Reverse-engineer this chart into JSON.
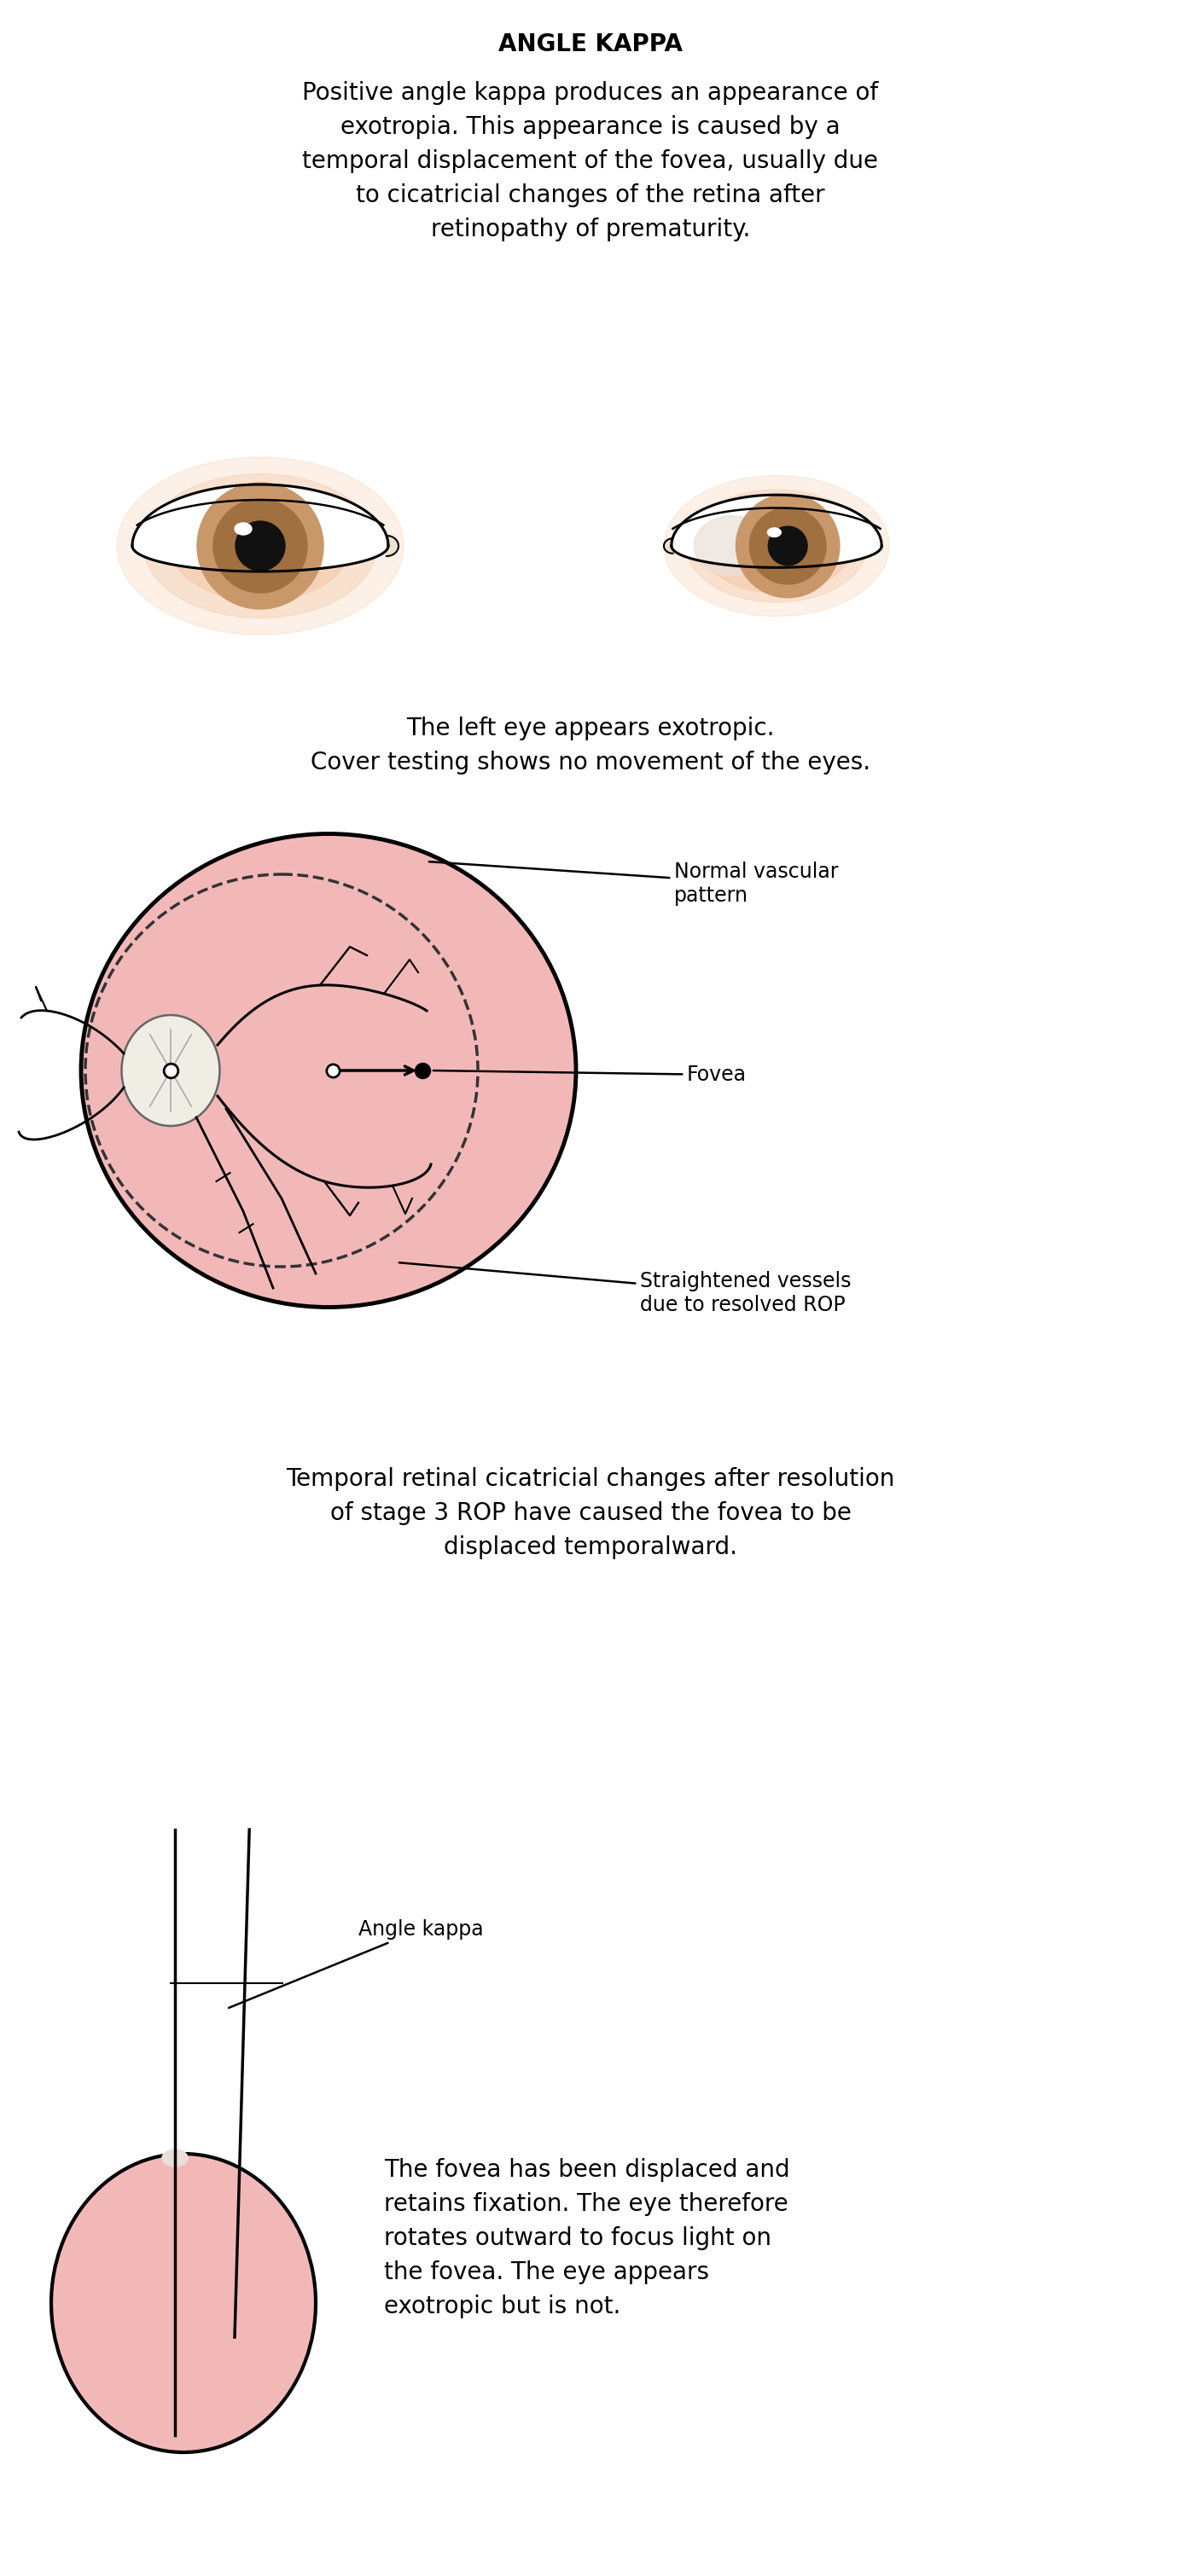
{
  "title": "ANGLE KAPPA",
  "title_fontsize": 20,
  "text1": "Positive angle kappa produces an appearance of\nexotropia. This appearance is caused by a\ntemporal displacement of the fovea, usually due\nto cicatricial changes of the retina after\nretinopathy of prematurity.",
  "text2": "The left eye appears exotropic.\nCover testing shows no movement of the eyes.",
  "text3": "Temporal retinal cicatricial changes after resolution\nof stage 3 ROP have caused the fovea to be\ndisplaced temporalward.",
  "text4": "The fovea has been displaced and\nretains fixation. The eye therefore\nrotates outward to focus light on\nthe fovea. The eye appears\nexotropic but is not.",
  "label_normal_vascular": "Normal vascular\npattern",
  "label_fovea": "Fovea",
  "label_straightened": "Straightened vessels\ndue to resolved ROP",
  "label_angle_kappa": "Angle kappa",
  "bg_color": "#ffffff",
  "skin_color": "#f5c5a3",
  "iris_outer": "#c8986a",
  "iris_inner": "#a07040",
  "pupil_color": "#111111",
  "retina_fill": "#f2b8b8",
  "disc_fill": "#f0ede5",
  "text_fontsize": 20,
  "label_fontsize": 17
}
